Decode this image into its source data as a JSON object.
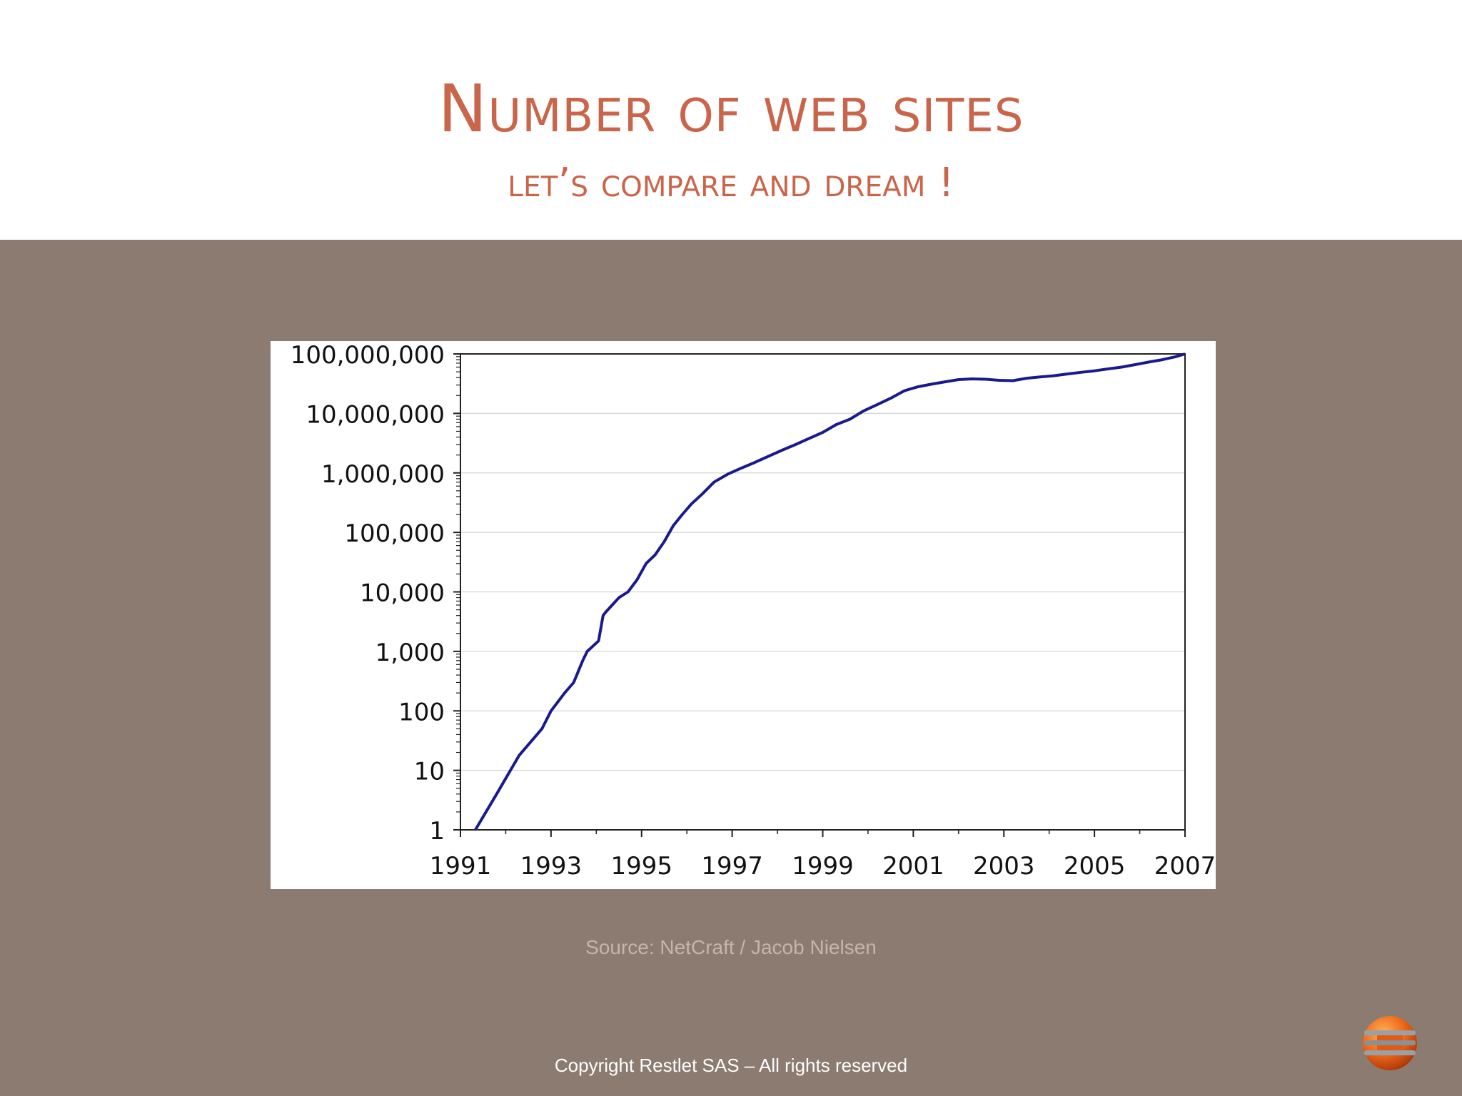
{
  "slide": {
    "title": "Number of web sites",
    "subtitle": "let’s compare and dream !",
    "source": "Source: NetCraft / Jacob Nielsen",
    "copyright": "Copyright Restlet SAS – All rights reserved"
  },
  "colors": {
    "title": "#c9654a",
    "band": "#8c7b71",
    "line": "#1a1a8c"
  },
  "icons": {
    "logo": "restlet-logo-icon"
  },
  "chart_data": {
    "type": "line",
    "title": "",
    "xlabel": "",
    "ylabel": "",
    "yscale": "log",
    "grid": true,
    "legend": "none",
    "xlim": [
      1991,
      2007
    ],
    "ylim": [
      1,
      100000000
    ],
    "x_ticks": [
      1991,
      1993,
      1995,
      1997,
      1999,
      2001,
      2003,
      2005,
      2007
    ],
    "y_ticks": [
      1,
      10,
      100,
      1000,
      10000,
      100000,
      1000000,
      10000000,
      100000000
    ],
    "x_tick_labels": [
      "1991",
      "1993",
      "1995",
      "1997",
      "1999",
      "2001",
      "2003",
      "2005",
      "2007"
    ],
    "y_tick_labels": [
      "1",
      "10",
      "100",
      "1,000",
      "10,000",
      "100,000",
      "1,000,000",
      "10,000,000",
      "100,000,000"
    ],
    "series": [
      {
        "x": [
          1991.33,
          1991.8,
          1992.3,
          1992.8,
          1993.0,
          1993.3,
          1993.5,
          1993.7,
          1993.8,
          1994.05,
          1994.15,
          1994.2,
          1994.35,
          1994.5,
          1994.7,
          1994.9,
          1995.1,
          1995.3,
          1995.5,
          1995.7,
          1995.9,
          1996.1,
          1996.35,
          1996.6,
          1996.9,
          1997.2,
          1997.5,
          1997.8,
          1998.1,
          1998.4,
          1998.7,
          1999.0,
          1999.3,
          1999.6,
          1999.9,
          2000.2,
          2000.5,
          2000.8,
          2001.1,
          2001.4,
          2001.7,
          2002.0,
          2002.3,
          2002.6,
          2002.9,
          2003.2,
          2003.5,
          2003.8,
          2004.1,
          2004.4,
          2004.7,
          2005.0,
          2005.3,
          2005.6,
          2005.9,
          2006.2,
          2006.5,
          2006.8,
          2007.0
        ],
        "y": [
          1,
          4,
          18,
          50,
          100,
          200,
          300,
          700,
          1000,
          1500,
          4000,
          4500,
          6000,
          8000,
          10000,
          16000,
          30000,
          42000,
          70000,
          130000,
          200000,
          300000,
          450000,
          700000,
          950000,
          1200000,
          1500000,
          1900000,
          2400000,
          3000000,
          3800000,
          4800000,
          6500000,
          8000000,
          11000000,
          14000000,
          18000000,
          24000000,
          28000000,
          31000000,
          34000000,
          37000000,
          38000000,
          37500000,
          36000000,
          35500000,
          39000000,
          41000000,
          43000000,
          46000000,
          49000000,
          52000000,
          56000000,
          60000000,
          66000000,
          73000000,
          80000000,
          90000000,
          100000000
        ]
      }
    ]
  }
}
